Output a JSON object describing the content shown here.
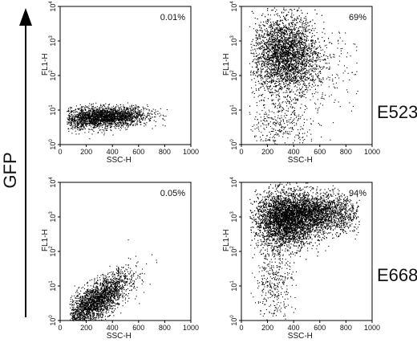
{
  "figure": {
    "y_axis_title": "GFP",
    "row_labels": [
      "E523",
      "E668"
    ]
  },
  "chart_data": [
    {
      "type": "scatter",
      "panel": "top-left",
      "row": "E523",
      "percent_label": "0.01%",
      "xlabel": "SSC-H",
      "ylabel": "FL1-H",
      "xlim": [
        0,
        1000
      ],
      "ylim": [
        1,
        10000
      ],
      "yscale": "log",
      "xticks": [
        0,
        200,
        400,
        600,
        800,
        1000
      ],
      "yticks": [
        "10^0",
        "10^1",
        "10^2",
        "10^3",
        "10^4"
      ],
      "clusters": [
        {
          "x_mean": 320,
          "x_sd": 170,
          "x_range": [
            50,
            820
          ],
          "y_log_mean": 0.8,
          "y_log_sd": 0.15,
          "y_trend": 0.00016,
          "density": "dense"
        }
      ]
    },
    {
      "type": "scatter",
      "panel": "top-right",
      "row": "E523",
      "percent_label": "69%",
      "xlabel": "SSC-H",
      "ylabel": "FL1-H",
      "xlim": [
        0,
        1000
      ],
      "ylim": [
        1,
        10000
      ],
      "yscale": "log",
      "xticks": [
        0,
        200,
        400,
        600,
        800,
        1000
      ],
      "yticks": [
        "10^0",
        "10^1",
        "10^2",
        "10^3",
        "10^4"
      ],
      "clusters": [
        {
          "x_mean": 330,
          "x_sd": 120,
          "x_range": [
            60,
            880
          ],
          "y_log_mean": 2.6,
          "y_log_sd": 0.55,
          "y_trend": 0,
          "density": "very dense"
        },
        {
          "x_mean": 520,
          "x_sd": 170,
          "x_range": [
            60,
            900
          ],
          "y_log_mean": 2.2,
          "y_log_sd": 0.6,
          "y_trend": 0,
          "density": "sparse"
        },
        {
          "x_mean": 280,
          "x_sd": 120,
          "x_range": [
            50,
            700
          ],
          "y_log_mean": 0.6,
          "y_log_sd": 0.45,
          "y_trend": 0,
          "density": "sparse"
        }
      ]
    },
    {
      "type": "scatter",
      "panel": "bottom-left",
      "row": "E668",
      "percent_label": "0.05%",
      "xlabel": "SSC-H",
      "ylabel": "FL1-H",
      "xlim": [
        0,
        1000
      ],
      "ylim": [
        1,
        10000
      ],
      "yscale": "log",
      "xticks": [
        0,
        200,
        400,
        600,
        800,
        1000
      ],
      "yticks": [
        "10^0",
        "10^1",
        "10^2",
        "10^3",
        "10^4"
      ],
      "clusters": [
        {
          "x_mean": 270,
          "x_sd": 130,
          "x_range": [
            70,
            870
          ],
          "y_log_mean": 0.55,
          "y_log_sd": 0.28,
          "y_trend": 0.0024,
          "density": "dense"
        }
      ]
    },
    {
      "type": "scatter",
      "panel": "bottom-right",
      "row": "E668",
      "percent_label": "94%",
      "xlabel": "SSC-H",
      "ylabel": "FL1-H",
      "xlim": [
        0,
        1000
      ],
      "ylim": [
        1,
        10000
      ],
      "yscale": "log",
      "xticks": [
        0,
        200,
        400,
        600,
        800,
        1000
      ],
      "yticks": [
        "10^0",
        "10^1",
        "10^2",
        "10^3",
        "10^4"
      ],
      "clusters": [
        {
          "x_mean": 330,
          "x_sd": 110,
          "x_range": [
            60,
            880
          ],
          "y_log_mean": 2.9,
          "y_log_sd": 0.4,
          "y_trend": 0,
          "density": "very dense"
        },
        {
          "x_mean": 560,
          "x_sd": 170,
          "x_range": [
            100,
            900
          ],
          "y_log_mean": 3.1,
          "y_log_sd": 0.3,
          "y_trend": 0,
          "density": "dense"
        },
        {
          "x_mean": 250,
          "x_sd": 70,
          "x_range": [
            70,
            650
          ],
          "y_log_mean": 1.2,
          "y_log_sd": 0.6,
          "y_trend": 0,
          "density": "sparse"
        }
      ]
    }
  ]
}
